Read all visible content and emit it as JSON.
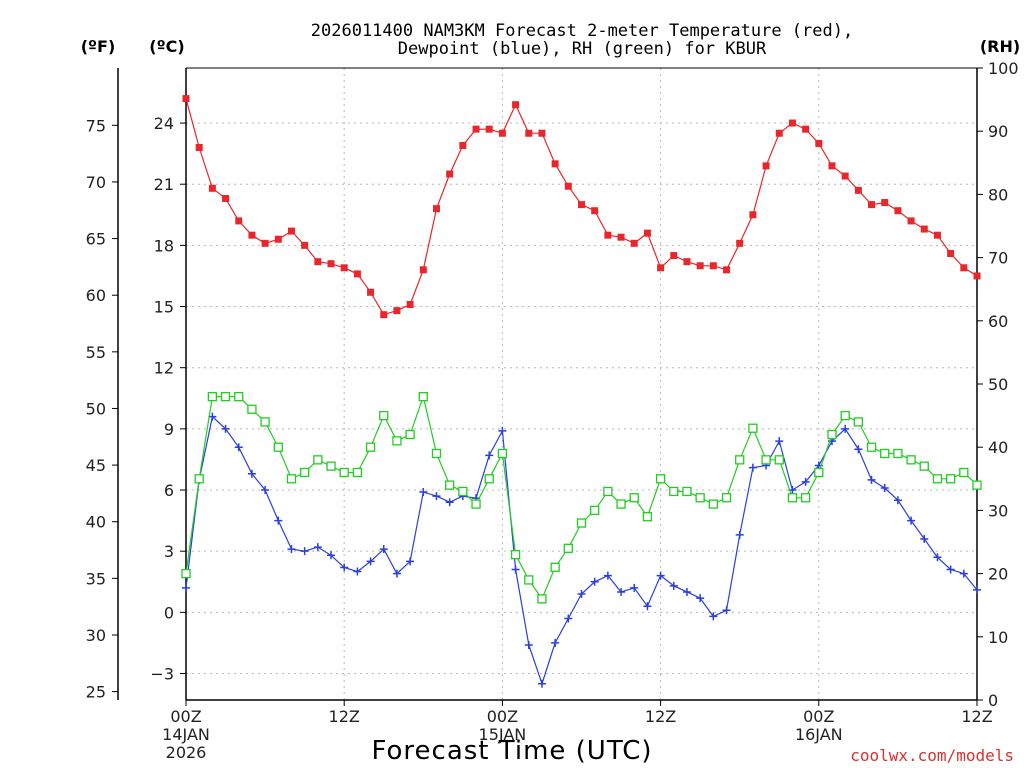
{
  "chart_data": {
    "type": "line",
    "title_line1": "2026011400 NAM3KM Forecast 2-meter Temperature (red),",
    "title_line2": "Dewpoint (blue), RH (green) for KBUR",
    "xlabel": "Forecast Time (UTC)",
    "credit": "coolwx.com/models",
    "units": {
      "fahrenheit": "(ºF)",
      "celsius": "(ºC)",
      "rh": "(RH)"
    },
    "x_range_hours": [
      0,
      60
    ],
    "celsius_ylim": [
      -4.3,
      26.7
    ],
    "celsius_ticks": [
      "−3",
      "0",
      "3",
      "6",
      "9",
      "12",
      "15",
      "18",
      "21",
      "24"
    ],
    "fahrenheit_ticks": [
      "25",
      "30",
      "35",
      "40",
      "45",
      "50",
      "55",
      "60",
      "65",
      "70",
      "75"
    ],
    "rh_ylim": [
      0,
      100
    ],
    "rh_ticks": [
      "0",
      "10",
      "20",
      "30",
      "40",
      "50",
      "60",
      "70",
      "80",
      "90",
      "100"
    ],
    "x_ticks": [
      {
        "hour": 0,
        "lines": [
          "00Z",
          "14JAN",
          "2026"
        ]
      },
      {
        "hour": 12,
        "lines": [
          "12Z"
        ]
      },
      {
        "hour": 24,
        "lines": [
          "00Z",
          "15JAN"
        ]
      },
      {
        "hour": 36,
        "lines": [
          "12Z"
        ]
      },
      {
        "hour": 48,
        "lines": [
          "00Z",
          "16JAN"
        ]
      },
      {
        "hour": 60,
        "lines": [
          "12Z"
        ]
      }
    ],
    "series": [
      {
        "name": "2-meter Temperature",
        "units": "C",
        "color": "#e8262b",
        "marker": "filled-square",
        "values": [
          25.2,
          22.8,
          20.8,
          20.3,
          19.2,
          18.5,
          18.1,
          18.3,
          18.7,
          18.0,
          17.2,
          17.1,
          16.9,
          16.6,
          15.7,
          14.6,
          14.8,
          15.1,
          16.8,
          19.8,
          21.5,
          22.9,
          23.7,
          23.7,
          23.5,
          24.9,
          23.5,
          23.5,
          22.0,
          20.9,
          20.0,
          19.7,
          18.5,
          18.4,
          18.1,
          18.6,
          16.9,
          17.5,
          17.2,
          17.0,
          17.0,
          16.8,
          18.1,
          19.5,
          21.9,
          23.5,
          24.0,
          23.7,
          23.0,
          21.9,
          21.4,
          20.7,
          20.0,
          20.1,
          19.7,
          19.2,
          18.8,
          18.5,
          17.6,
          16.9,
          16.5
        ]
      },
      {
        "name": "Dewpoint",
        "units": "C",
        "color": "#2a3fe0",
        "marker": "plus",
        "values": [
          1.2,
          6.5,
          9.6,
          9.0,
          8.1,
          6.8,
          6.0,
          4.5,
          3.1,
          3.0,
          3.2,
          2.8,
          2.2,
          2.0,
          2.5,
          3.1,
          1.9,
          2.5,
          5.9,
          5.7,
          5.4,
          5.7,
          5.6,
          7.7,
          8.9,
          2.1,
          -1.6,
          -3.5,
          -1.5,
          -0.3,
          0.9,
          1.5,
          1.8,
          1.0,
          1.2,
          0.3,
          1.8,
          1.3,
          1.0,
          0.7,
          -0.2,
          0.1,
          3.8,
          7.1,
          7.2,
          8.4,
          6.0,
          6.4,
          7.2,
          8.4,
          9.0,
          8.0,
          6.5,
          6.1,
          5.5,
          4.5,
          3.6,
          2.7,
          2.1,
          1.9,
          1.1
        ]
      },
      {
        "name": "RH",
        "units": "%",
        "color": "#22cc22",
        "marker": "open-square",
        "values": [
          20,
          35,
          48,
          48,
          48,
          46,
          44,
          40,
          35,
          36,
          38,
          37,
          36,
          36,
          40,
          45,
          41,
          42,
          48,
          39,
          34,
          33,
          31,
          35,
          39,
          23,
          19,
          16,
          21,
          24,
          28,
          30,
          33,
          31,
          32,
          29,
          35,
          33,
          33,
          32,
          31,
          32,
          38,
          43,
          38,
          38,
          32,
          32,
          36,
          42,
          45,
          44,
          40,
          39,
          39,
          38,
          37,
          35,
          35,
          36,
          34
        ]
      }
    ]
  }
}
